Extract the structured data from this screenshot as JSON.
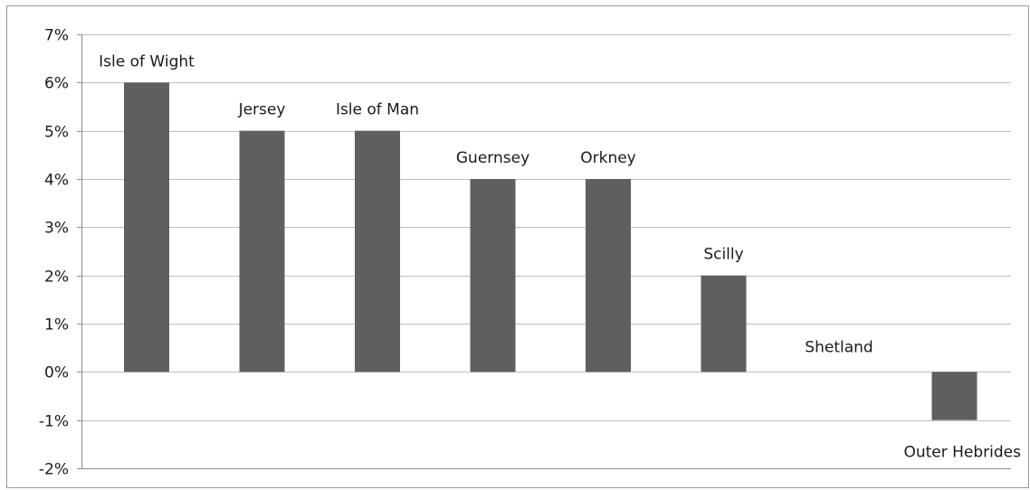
{
  "chart_data": {
    "type": "bar",
    "categories": [
      "Isle of Wight",
      "Jersey",
      "Isle of Man",
      "Guernsey",
      "Orkney",
      "Scilly",
      "Shetland",
      "Outer Hebrides"
    ],
    "values": [
      6,
      5,
      5,
      4,
      4,
      2,
      0,
      -1
    ],
    "data_labels": [
      "Isle of Wight",
      "Jersey",
      "Isle of Man",
      "Guernsey",
      "Orkney",
      "Scilly",
      "Shetland",
      "Outer Hebrides"
    ],
    "title": "",
    "xlabel": "",
    "ylabel": "",
    "ylim": [
      -2,
      7
    ],
    "y_ticks": [
      7,
      6,
      5,
      4,
      3,
      2,
      1,
      0,
      -1,
      -2
    ],
    "y_tick_labels": [
      "7%",
      "6%",
      "5%",
      "4%",
      "3%",
      "2%",
      "1%",
      "0%",
      "-1%",
      "-2%"
    ],
    "grid": true,
    "legend": "none",
    "colors": {
      "bar": "#5f5f5f",
      "grid": "#bdbdbd",
      "text": "#1a1a1a"
    }
  }
}
